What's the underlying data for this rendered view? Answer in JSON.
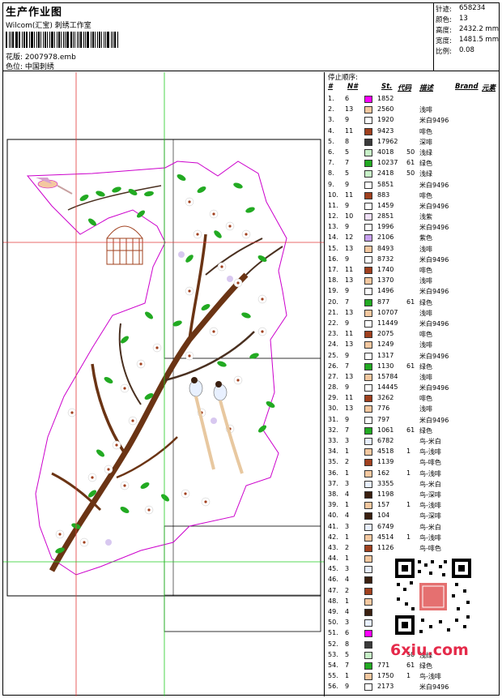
{
  "header": {
    "title": "生产作业图",
    "company": "Wilcom(汇宝) 刺绣工作室",
    "design_label": "花版:",
    "design_value": "2007978.emb",
    "colorpos_label": "色位:",
    "colorpos_value": "中国刺绣"
  },
  "stats": [
    {
      "k": "针迹:",
      "v": "658234"
    },
    {
      "k": "颜色:",
      "v": "13"
    },
    {
      "k": "高度:",
      "v": "2432.2 mm"
    },
    {
      "k": "宽度:",
      "v": "1481.5 mm"
    },
    {
      "k": "比例:",
      "v": "0.08"
    }
  ],
  "stoplist": {
    "title": "停止顺序:",
    "headers": {
      "num": "#",
      "n": "N#",
      "st": "St.",
      "code": "代码",
      "desc": "描述",
      "brand": "Brand",
      "elem": "元素"
    },
    "rows": [
      {
        "i": "1.",
        "n": "6",
        "color": "#ff00ff",
        "st": "1852",
        "code": "",
        "desc": ""
      },
      {
        "i": "2.",
        "n": "13",
        "color": "#f4c8a0",
        "st": "2560",
        "code": "",
        "desc": "浅啡"
      },
      {
        "i": "3.",
        "n": "9",
        "color": "#ffffff",
        "st": "1920",
        "code": "",
        "desc": "米白9496"
      },
      {
        "i": "4.",
        "n": "11",
        "color": "#a0401e",
        "st": "9423",
        "code": "",
        "desc": "啡色"
      },
      {
        "i": "5.",
        "n": "8",
        "color": "#3a3a3a",
        "st": "17962",
        "code": "",
        "desc": "深啡"
      },
      {
        "i": "6.",
        "n": "5",
        "color": "#c8f0c8",
        "st": "4018",
        "code": "50",
        "desc": "浅绿"
      },
      {
        "i": "7.",
        "n": "7",
        "color": "#22aa22",
        "st": "10237",
        "code": "61",
        "desc": "绿色"
      },
      {
        "i": "8.",
        "n": "5",
        "color": "#c8f0c8",
        "st": "2418",
        "code": "50",
        "desc": "浅绿"
      },
      {
        "i": "9.",
        "n": "9",
        "color": "#ffffff",
        "st": "5851",
        "code": "",
        "desc": "米白9496"
      },
      {
        "i": "10.",
        "n": "11",
        "color": "#a0401e",
        "st": "883",
        "code": "",
        "desc": "啡色"
      },
      {
        "i": "11.",
        "n": "9",
        "color": "#ffffff",
        "st": "1459",
        "code": "",
        "desc": "米白9496"
      },
      {
        "i": "12.",
        "n": "10",
        "color": "#f0e0f8",
        "st": "2851",
        "code": "",
        "desc": "浅紫"
      },
      {
        "i": "13.",
        "n": "9",
        "color": "#ffffff",
        "st": "1996",
        "code": "",
        "desc": "米白9496"
      },
      {
        "i": "14.",
        "n": "12",
        "color": "#c8a0f0",
        "st": "2106",
        "code": "",
        "desc": "紫色"
      },
      {
        "i": "15.",
        "n": "13",
        "color": "#f4c8a0",
        "st": "8493",
        "code": "",
        "desc": "浅啡"
      },
      {
        "i": "16.",
        "n": "9",
        "color": "#ffffff",
        "st": "8732",
        "code": "",
        "desc": "米白9496"
      },
      {
        "i": "17.",
        "n": "11",
        "color": "#a0401e",
        "st": "1740",
        "code": "",
        "desc": "啡色"
      },
      {
        "i": "18.",
        "n": "13",
        "color": "#f4c8a0",
        "st": "1370",
        "code": "",
        "desc": "浅啡"
      },
      {
        "i": "19.",
        "n": "9",
        "color": "#ffffff",
        "st": "1496",
        "code": "",
        "desc": "米白9496"
      },
      {
        "i": "20.",
        "n": "7",
        "color": "#22aa22",
        "st": "877",
        "code": "61",
        "desc": "绿色"
      },
      {
        "i": "21.",
        "n": "13",
        "color": "#f4c8a0",
        "st": "10707",
        "code": "",
        "desc": "浅啡"
      },
      {
        "i": "22.",
        "n": "9",
        "color": "#ffffff",
        "st": "11449",
        "code": "",
        "desc": "米白9496"
      },
      {
        "i": "23.",
        "n": "11",
        "color": "#a0401e",
        "st": "2075",
        "code": "",
        "desc": "啡色"
      },
      {
        "i": "24.",
        "n": "13",
        "color": "#f4c8a0",
        "st": "1249",
        "code": "",
        "desc": "浅啡"
      },
      {
        "i": "25.",
        "n": "9",
        "color": "#ffffff",
        "st": "1317",
        "code": "",
        "desc": "米白9496"
      },
      {
        "i": "26.",
        "n": "7",
        "color": "#22aa22",
        "st": "1130",
        "code": "61",
        "desc": "绿色"
      },
      {
        "i": "27.",
        "n": "13",
        "color": "#f4c8a0",
        "st": "15784",
        "code": "",
        "desc": "浅啡"
      },
      {
        "i": "28.",
        "n": "9",
        "color": "#ffffff",
        "st": "14445",
        "code": "",
        "desc": "米白9496"
      },
      {
        "i": "29.",
        "n": "11",
        "color": "#a0401e",
        "st": "3262",
        "code": "",
        "desc": "啡色"
      },
      {
        "i": "30.",
        "n": "13",
        "color": "#f4c8a0",
        "st": "776",
        "code": "",
        "desc": "浅啡"
      },
      {
        "i": "31.",
        "n": "9",
        "color": "#ffffff",
        "st": "797",
        "code": "",
        "desc": "米白9496"
      },
      {
        "i": "32.",
        "n": "7",
        "color": "#22aa22",
        "st": "1061",
        "code": "61",
        "desc": "绿色"
      },
      {
        "i": "33.",
        "n": "3",
        "color": "#e8f0ff",
        "st": "6782",
        "code": "",
        "desc": "鸟-米白"
      },
      {
        "i": "34.",
        "n": "1",
        "color": "#f4c8a0",
        "st": "4518",
        "code": "1",
        "desc": "鸟-浅啡"
      },
      {
        "i": "35.",
        "n": "2",
        "color": "#a0401e",
        "st": "1139",
        "code": "",
        "desc": "鸟-啡色"
      },
      {
        "i": "36.",
        "n": "1",
        "color": "#f4c8a0",
        "st": "162",
        "code": "1",
        "desc": "鸟-浅啡"
      },
      {
        "i": "37.",
        "n": "3",
        "color": "#e8f0ff",
        "st": "3355",
        "code": "",
        "desc": "鸟-米白"
      },
      {
        "i": "38.",
        "n": "4",
        "color": "#3a2010",
        "st": "1198",
        "code": "",
        "desc": "鸟-深啡"
      },
      {
        "i": "39.",
        "n": "1",
        "color": "#f4c8a0",
        "st": "157",
        "code": "1",
        "desc": "鸟-浅啡"
      },
      {
        "i": "40.",
        "n": "4",
        "color": "#3a2010",
        "st": "104",
        "code": "",
        "desc": "鸟-深啡"
      },
      {
        "i": "41.",
        "n": "3",
        "color": "#e8f0ff",
        "st": "6749",
        "code": "",
        "desc": "鸟-米白"
      },
      {
        "i": "42.",
        "n": "1",
        "color": "#f4c8a0",
        "st": "4514",
        "code": "1",
        "desc": "鸟-浅啡"
      },
      {
        "i": "43.",
        "n": "2",
        "color": "#a0401e",
        "st": "1126",
        "code": "",
        "desc": "鸟-啡色"
      },
      {
        "i": "44.",
        "n": "1",
        "color": "#f4c8a0",
        "st": "",
        "code": "",
        "desc": ""
      },
      {
        "i": "45.",
        "n": "3",
        "color": "#e8f0ff",
        "st": "",
        "code": "",
        "desc": ""
      },
      {
        "i": "46.",
        "n": "4",
        "color": "#3a2010",
        "st": "",
        "code": "",
        "desc": ""
      },
      {
        "i": "47.",
        "n": "2",
        "color": "#a0401e",
        "st": "",
        "code": "",
        "desc": ""
      },
      {
        "i": "48.",
        "n": "1",
        "color": "#f4c8a0",
        "st": "",
        "code": "",
        "desc": ""
      },
      {
        "i": "49.",
        "n": "4",
        "color": "#3a2010",
        "st": "",
        "code": "",
        "desc": ""
      },
      {
        "i": "50.",
        "n": "3",
        "color": "#e8f0ff",
        "st": "",
        "code": "",
        "desc": ""
      },
      {
        "i": "51.",
        "n": "6",
        "color": "#ff00ff",
        "st": "",
        "code": "",
        "desc": ""
      },
      {
        "i": "52.",
        "n": "8",
        "color": "#3a3a3a",
        "st": "",
        "code": "",
        "desc": ""
      },
      {
        "i": "53.",
        "n": "5",
        "color": "#c8f0c8",
        "st": "",
        "code": "50",
        "desc": "浅绿"
      },
      {
        "i": "54.",
        "n": "7",
        "color": "#22aa22",
        "st": "771",
        "code": "61",
        "desc": "绿色"
      },
      {
        "i": "55.",
        "n": "1",
        "color": "#f4c8a0",
        "st": "1750",
        "code": "1",
        "desc": "鸟-浅啡"
      },
      {
        "i": "56.",
        "n": "9",
        "color": "#ffffff",
        "st": "2173",
        "code": "",
        "desc": "米白9496"
      }
    ]
  },
  "watermark": "6xiu.com"
}
